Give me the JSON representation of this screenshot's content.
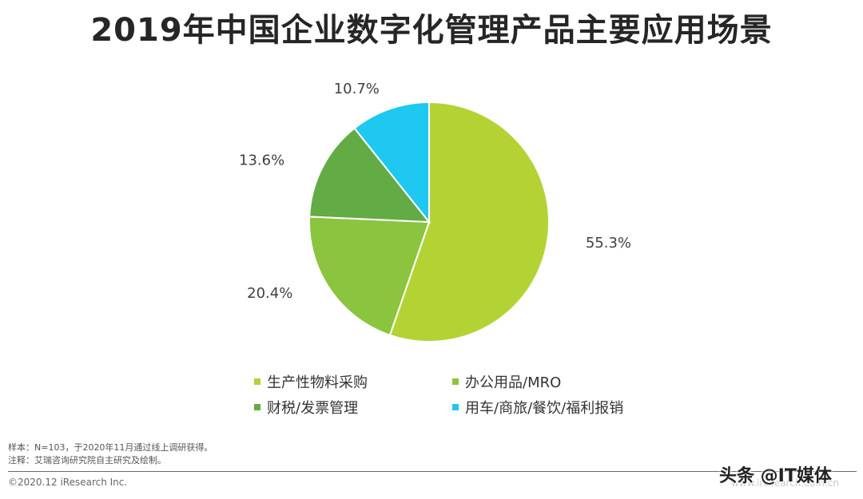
{
  "title": "2019年中国企业数字化管理产品主要应用场景",
  "chart_data": {
    "type": "pie",
    "title": "2019年中国企业数字化管理产品主要应用场景",
    "slices": [
      {
        "label": "生产性物料采购",
        "value": 55.3,
        "label_text": "55.3%",
        "color": "#b3d335"
      },
      {
        "label": "办公用品/MRO",
        "value": 20.4,
        "label_text": "20.4%",
        "color": "#8bc43f"
      },
      {
        "label": "财税/发票管理",
        "value": 13.6,
        "label_text": "13.6%",
        "color": "#63ab45"
      },
      {
        "label": "用车/商旅/餐饮/福利报销",
        "value": 10.7,
        "label_text": "10.7%",
        "color": "#1ec8f0"
      }
    ],
    "legend_position": "bottom"
  },
  "footnotes": {
    "sample": "样本：N=103，于2020年11月通过线上调研获得。",
    "note": "注释：艾瑞咨询研究院自主研究及绘制。"
  },
  "copyright": "©2020.12 iResearch Inc.",
  "site": "www.iresearch.com.cn",
  "watermark": "头条 @IT媒体"
}
